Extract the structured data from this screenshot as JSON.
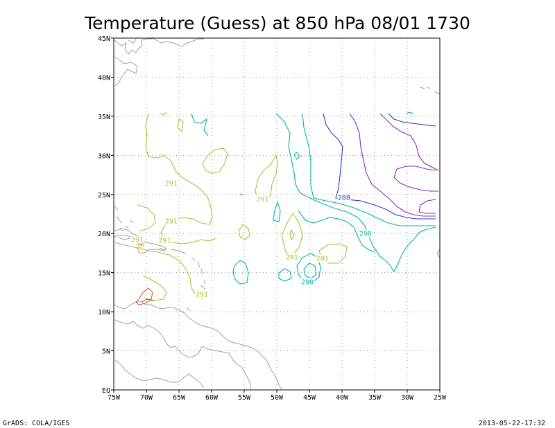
{
  "title": "Temperature (Guess) at 850 hPa 08/01 1730",
  "footer_left": "GrADS: COLA/IGES",
  "footer_right": "2013-05-22-17:32",
  "axes": {
    "lon_range": [
      -75,
      -25
    ],
    "lat_range": [
      0,
      45
    ],
    "x_ticks": [
      {
        "value": -75,
        "label": "75W"
      },
      {
        "value": -70,
        "label": "70W"
      },
      {
        "value": -65,
        "label": "65W"
      },
      {
        "value": -60,
        "label": "60W"
      },
      {
        "value": -55,
        "label": "55W"
      },
      {
        "value": -50,
        "label": "50W"
      },
      {
        "value": -45,
        "label": "45W"
      },
      {
        "value": -40,
        "label": "40W"
      },
      {
        "value": -35,
        "label": "35W"
      },
      {
        "value": -30,
        "label": "30W"
      },
      {
        "value": -25,
        "label": "25W"
      }
    ],
    "y_ticks": [
      {
        "value": 0,
        "label": "EQ"
      },
      {
        "value": 5,
        "label": "5N"
      },
      {
        "value": 10,
        "label": "10N"
      },
      {
        "value": 15,
        "label": "15N"
      },
      {
        "value": 20,
        "label": "20N"
      },
      {
        "value": 25,
        "label": "25N"
      },
      {
        "value": 30,
        "label": "30N"
      },
      {
        "value": 35,
        "label": "35N"
      },
      {
        "value": 40,
        "label": "40N"
      },
      {
        "value": 45,
        "label": "45N"
      }
    ],
    "grid": true
  },
  "contour_labels": [
    {
      "text": "291",
      "lon": -66.2,
      "lat": 26.2,
      "color": "#a0c832"
    },
    {
      "text": "291",
      "lon": -66.2,
      "lat": 21.4,
      "color": "#a0c832"
    },
    {
      "text": "291",
      "lon": -71.4,
      "lat": 19.0,
      "color": "#a0c832"
    },
    {
      "text": "291",
      "lon": -67.2,
      "lat": 18.9,
      "color": "#a0c832"
    },
    {
      "text": "291",
      "lon": -61.5,
      "lat": 12.0,
      "color": "#a0c832"
    },
    {
      "text": "291",
      "lon": -52.2,
      "lat": 24.2,
      "color": "#a0c832"
    },
    {
      "text": "291",
      "lon": -47.7,
      "lat": 16.8,
      "color": "#a0c832"
    },
    {
      "text": "291",
      "lon": -43.0,
      "lat": 16.6,
      "color": "#a0c832"
    },
    {
      "text": "290",
      "lon": -45.3,
      "lat": 13.6,
      "color": "#00b4a0"
    },
    {
      "text": "290",
      "lon": -36.4,
      "lat": 19.8,
      "color": "#00b4a0"
    },
    {
      "text": "288",
      "lon": -39.7,
      "lat": 24.4,
      "color": "#1e3cc8"
    }
  ],
  "contour_colors": {
    "c287": "#8c28b4",
    "c288": "#1e3cc8",
    "c290": "#00b4a0",
    "c291": "#a0c832",
    "c292": "#f0c828",
    "c294": "#c86432",
    "c296": "#e63c1e"
  },
  "coast_color": "#a0a0a0"
}
